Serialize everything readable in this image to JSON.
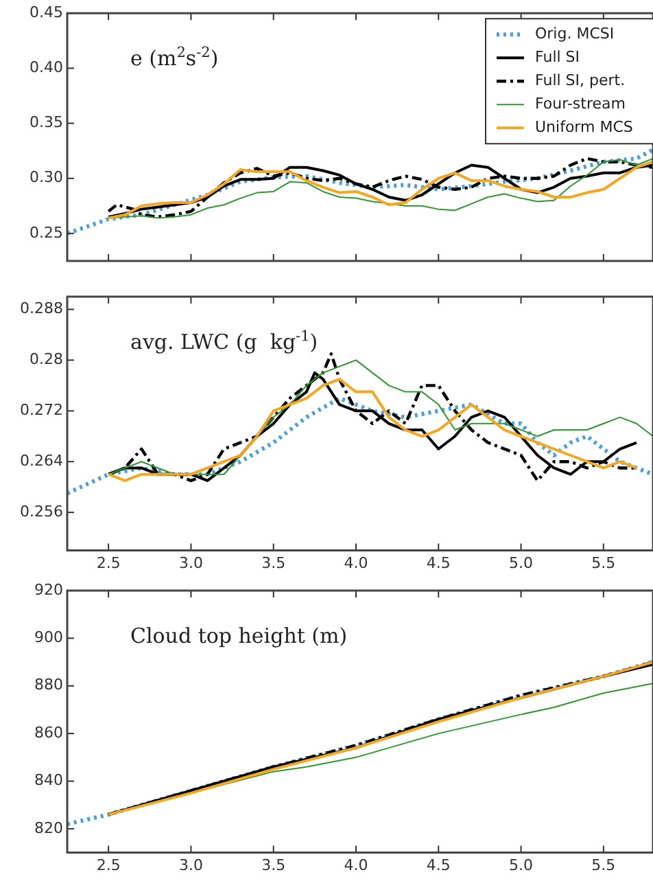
{
  "chart_data": [
    {
      "type": "line",
      "title": "e (m$^{2}$s$^{-2}$)",
      "xlim": [
        2.25,
        5.8
      ],
      "ylim": [
        0.225,
        0.45
      ],
      "xticks": [
        2.5,
        3,
        3.5,
        4,
        4.5,
        5,
        5.5
      ],
      "yticks": [
        {
          "value": 0.25,
          "label": "0.25"
        },
        {
          "value": 0.3,
          "label": "0.30"
        },
        {
          "value": 0.35,
          "label": "0.35"
        },
        {
          "value": 0.4,
          "label": "0.40"
        },
        {
          "value": 0.45,
          "label": "0.45"
        }
      ],
      "tick_labels": "y",
      "grid": false,
      "legend": "top right",
      "marker": "none",
      "series": [
        {
          "name": "Orig. MCSI",
          "color": "#4a9fe0",
          "line_style": "dotted",
          "x": [
            2.25,
            2.5,
            2.7,
            2.9,
            3.1,
            3.3,
            3.5,
            3.7,
            3.9,
            4.1,
            4.3,
            4.5,
            4.7,
            4.9,
            5.1,
            5.3,
            5.5,
            5.7,
            5.8
          ],
          "values": [
            0.25,
            0.263,
            0.267,
            0.276,
            0.285,
            0.297,
            0.301,
            0.302,
            0.296,
            0.292,
            0.294,
            0.29,
            0.293,
            0.297,
            0.3,
            0.307,
            0.315,
            0.318,
            0.326
          ]
        },
        {
          "name": "Full SI",
          "color": "#000000",
          "line_style": "solid",
          "x": [
            2.5,
            2.6,
            2.7,
            2.8,
            2.9,
            3.0,
            3.1,
            3.2,
            3.3,
            3.4,
            3.5,
            3.6,
            3.7,
            3.8,
            3.9,
            4.0,
            4.1,
            4.2,
            4.3,
            4.4,
            4.5,
            4.6,
            4.7,
            4.8,
            4.9,
            5.0,
            5.1,
            5.2,
            5.3,
            5.4,
            5.5,
            5.6,
            5.7,
            5.8
          ],
          "values": [
            0.265,
            0.268,
            0.272,
            0.274,
            0.276,
            0.278,
            0.283,
            0.293,
            0.299,
            0.299,
            0.3,
            0.31,
            0.31,
            0.307,
            0.303,
            0.295,
            0.29,
            0.283,
            0.28,
            0.285,
            0.295,
            0.305,
            0.312,
            0.31,
            0.3,
            0.29,
            0.287,
            0.292,
            0.3,
            0.302,
            0.305,
            0.305,
            0.31,
            0.312
          ]
        },
        {
          "name": "Full SI, pert.",
          "color": "#000000",
          "line_style": "dashed",
          "x": [
            2.5,
            2.55,
            2.65,
            2.7,
            2.8,
            2.9,
            3.0,
            3.1,
            3.2,
            3.3,
            3.4,
            3.5,
            3.6,
            3.7,
            3.8,
            3.9,
            4.0,
            4.1,
            4.2,
            4.3,
            4.4,
            4.5,
            4.6,
            4.7,
            4.8,
            4.9,
            5.0,
            5.1,
            5.2,
            5.3,
            5.4,
            5.5,
            5.6,
            5.7,
            5.8
          ],
          "values": [
            0.27,
            0.276,
            0.272,
            0.267,
            0.265,
            0.267,
            0.27,
            0.283,
            0.296,
            0.305,
            0.309,
            0.302,
            0.305,
            0.3,
            0.298,
            0.3,
            0.295,
            0.292,
            0.298,
            0.302,
            0.299,
            0.292,
            0.29,
            0.292,
            0.3,
            0.302,
            0.3,
            0.3,
            0.302,
            0.312,
            0.318,
            0.315,
            0.315,
            0.312,
            0.31
          ]
        },
        {
          "name": "Four-stream",
          "color": "#2e9a2e",
          "line_style": "solid",
          "x": [
            2.5,
            2.6,
            2.7,
            2.8,
            2.9,
            3.0,
            3.1,
            3.2,
            3.3,
            3.4,
            3.5,
            3.6,
            3.7,
            3.8,
            3.9,
            4.0,
            4.1,
            4.2,
            4.3,
            4.4,
            4.5,
            4.6,
            4.7,
            4.8,
            4.9,
            5.0,
            5.1,
            5.2,
            5.3,
            5.4,
            5.5,
            5.6,
            5.7,
            5.8
          ],
          "values": [
            0.264,
            0.265,
            0.266,
            0.264,
            0.265,
            0.267,
            0.273,
            0.276,
            0.282,
            0.287,
            0.288,
            0.297,
            0.296,
            0.288,
            0.283,
            0.282,
            0.279,
            0.277,
            0.275,
            0.275,
            0.272,
            0.271,
            0.277,
            0.283,
            0.286,
            0.282,
            0.279,
            0.28,
            0.293,
            0.303,
            0.315,
            0.317,
            0.312,
            0.318
          ]
        },
        {
          "name": "Uniform MCS",
          "color": "#f5a623",
          "line_style": "solid",
          "x": [
            2.5,
            2.6,
            2.7,
            2.8,
            2.9,
            3.0,
            3.1,
            3.2,
            3.3,
            3.4,
            3.5,
            3.6,
            3.7,
            3.8,
            3.9,
            4.0,
            4.1,
            4.2,
            4.3,
            4.4,
            4.5,
            4.6,
            4.7,
            4.8,
            4.9,
            5.0,
            5.1,
            5.2,
            5.3,
            5.4,
            5.5,
            5.6,
            5.7,
            5.8
          ],
          "values": [
            0.264,
            0.267,
            0.275,
            0.277,
            0.278,
            0.278,
            0.285,
            0.295,
            0.308,
            0.306,
            0.306,
            0.306,
            0.298,
            0.292,
            0.287,
            0.288,
            0.283,
            0.276,
            0.278,
            0.29,
            0.3,
            0.305,
            0.298,
            0.298,
            0.293,
            0.29,
            0.288,
            0.283,
            0.283,
            0.287,
            0.29,
            0.3,
            0.31,
            0.315
          ]
        }
      ]
    },
    {
      "type": "line",
      "title": "avg. LWC (g  kg$^{-1}$)",
      "xlim": [
        2.25,
        5.8
      ],
      "ylim": [
        0.25,
        0.29
      ],
      "xticks": [
        {
          "value": 2.5,
          "label": "2.5"
        },
        {
          "value": 3,
          "label": "3.0"
        },
        {
          "value": 3.5,
          "label": "3.5"
        },
        {
          "value": 4,
          "label": "4.0"
        },
        {
          "value": 4.5,
          "label": "4.5"
        },
        {
          "value": 5,
          "label": "5.0"
        },
        {
          "value": 5.5,
          "label": "5.5"
        }
      ],
      "yticks": [
        0.256,
        0.264,
        0.272,
        0.28,
        0.288
      ],
      "grid": false,
      "marker": "none",
      "series": [
        {
          "color": "#4a9fe0",
          "line_style": "dotted",
          "x": [
            2.25,
            2.5,
            2.7,
            2.9,
            3.1,
            3.3,
            3.5,
            3.7,
            3.9,
            4.1,
            4.3,
            4.5,
            4.7,
            4.9,
            5.0,
            5.1,
            5.2,
            5.3,
            5.4,
            5.5,
            5.6,
            5.7,
            5.8
          ],
          "values": [
            0.259,
            0.262,
            0.263,
            0.262,
            0.262,
            0.264,
            0.267,
            0.271,
            0.274,
            0.272,
            0.271,
            0.272,
            0.273,
            0.27,
            0.27,
            0.267,
            0.265,
            0.267,
            0.268,
            0.266,
            0.264,
            0.263,
            0.262
          ]
        },
        {
          "color": "#000000",
          "line_style": "solid",
          "x": [
            2.5,
            2.6,
            2.7,
            2.8,
            2.9,
            3.0,
            3.1,
            3.2,
            3.3,
            3.4,
            3.5,
            3.6,
            3.7,
            3.75,
            3.8,
            3.9,
            4.0,
            4.1,
            4.2,
            4.3,
            4.4,
            4.5,
            4.6,
            4.7,
            4.8,
            4.9,
            5.0,
            5.1,
            5.2,
            5.3,
            5.4,
            5.5,
            5.6,
            5.7
          ],
          "values": [
            0.262,
            0.263,
            0.263,
            0.262,
            0.262,
            0.262,
            0.261,
            0.263,
            0.265,
            0.268,
            0.27,
            0.273,
            0.275,
            0.278,
            0.277,
            0.273,
            0.272,
            0.272,
            0.27,
            0.269,
            0.269,
            0.266,
            0.268,
            0.271,
            0.272,
            0.271,
            0.268,
            0.265,
            0.263,
            0.262,
            0.264,
            0.264,
            0.266,
            0.267
          ]
        },
        {
          "color": "#000000",
          "line_style": "dashed",
          "x": [
            2.5,
            2.6,
            2.7,
            2.8,
            2.9,
            3.0,
            3.1,
            3.2,
            3.3,
            3.4,
            3.5,
            3.6,
            3.7,
            3.8,
            3.85,
            3.9,
            4.0,
            4.1,
            4.2,
            4.3,
            4.4,
            4.5,
            4.6,
            4.7,
            4.8,
            4.9,
            5.0,
            5.1,
            5.2,
            5.3,
            5.4,
            5.5,
            5.6,
            5.7
          ],
          "values": [
            0.262,
            0.263,
            0.266,
            0.262,
            0.262,
            0.261,
            0.262,
            0.266,
            0.267,
            0.268,
            0.271,
            0.274,
            0.276,
            0.278,
            0.281,
            0.277,
            0.272,
            0.27,
            0.272,
            0.27,
            0.276,
            0.276,
            0.272,
            0.269,
            0.267,
            0.266,
            0.265,
            0.261,
            0.264,
            0.264,
            0.263,
            0.264,
            0.263,
            0.263
          ]
        },
        {
          "color": "#2e9a2e",
          "line_style": "solid",
          "x": [
            2.5,
            2.6,
            2.7,
            2.8,
            2.9,
            3.0,
            3.1,
            3.2,
            3.3,
            3.4,
            3.5,
            3.6,
            3.7,
            3.8,
            3.9,
            4.0,
            4.1,
            4.2,
            4.3,
            4.4,
            4.5,
            4.6,
            4.7,
            4.8,
            4.9,
            5.0,
            5.1,
            5.2,
            5.3,
            5.4,
            5.5,
            5.6,
            5.7,
            5.8
          ],
          "values": [
            0.262,
            0.263,
            0.264,
            0.263,
            0.262,
            0.262,
            0.262,
            0.262,
            0.265,
            0.268,
            0.271,
            0.273,
            0.276,
            0.278,
            0.279,
            0.28,
            0.278,
            0.276,
            0.275,
            0.275,
            0.273,
            0.269,
            0.27,
            0.27,
            0.27,
            0.269,
            0.268,
            0.269,
            0.269,
            0.269,
            0.27,
            0.271,
            0.27,
            0.268
          ]
        },
        {
          "color": "#f5a623",
          "line_style": "solid",
          "x": [
            2.5,
            2.6,
            2.7,
            2.8,
            2.9,
            3.0,
            3.1,
            3.2,
            3.3,
            3.4,
            3.5,
            3.6,
            3.7,
            3.8,
            3.9,
            4.0,
            4.1,
            4.2,
            4.3,
            4.4,
            4.5,
            4.6,
            4.7,
            4.8,
            4.9,
            5.0,
            5.1,
            5.2,
            5.3,
            5.4,
            5.5,
            5.6,
            5.7
          ],
          "values": [
            0.262,
            0.261,
            0.262,
            0.262,
            0.262,
            0.262,
            0.263,
            0.264,
            0.265,
            0.268,
            0.272,
            0.273,
            0.274,
            0.276,
            0.277,
            0.275,
            0.275,
            0.271,
            0.269,
            0.268,
            0.269,
            0.271,
            0.273,
            0.271,
            0.269,
            0.268,
            0.267,
            0.266,
            0.265,
            0.264,
            0.263,
            0.264,
            0.263
          ]
        }
      ]
    },
    {
      "type": "line",
      "title": "Cloud top height (m)",
      "xlim": [
        2.25,
        5.8
      ],
      "ylim": [
        810,
        920
      ],
      "xticks": [
        {
          "value": 2.5,
          "label": "2.5"
        },
        {
          "value": 3,
          "label": "3.0"
        },
        {
          "value": 3.5,
          "label": "3.5"
        },
        {
          "value": 4,
          "label": "4.0"
        },
        {
          "value": 4.5,
          "label": "4.5"
        },
        {
          "value": 5,
          "label": "5.0"
        },
        {
          "value": 5.5,
          "label": "5.5"
        }
      ],
      "yticks": [
        820,
        840,
        860,
        880,
        900,
        920
      ],
      "grid": false,
      "marker": "none",
      "series": [
        {
          "color": "#4a9fe0",
          "line_style": "dotted",
          "x": [
            2.25,
            2.5,
            3.0,
            3.5,
            4.0,
            4.5,
            5.0,
            5.5,
            5.8
          ],
          "values": [
            822,
            826,
            836,
            846,
            855,
            866,
            876,
            884,
            890
          ]
        },
        {
          "color": "#000000",
          "line_style": "solid",
          "x": [
            2.5,
            3.0,
            3.5,
            4.0,
            4.5,
            5.0,
            5.5,
            5.8
          ],
          "values": [
            826,
            836,
            846,
            854,
            866,
            875,
            884,
            889
          ]
        },
        {
          "color": "#000000",
          "line_style": "dashed",
          "x": [
            2.5,
            3.0,
            3.5,
            4.0,
            4.5,
            5.0,
            5.5,
            5.8
          ],
          "values": [
            826,
            836,
            846,
            855,
            866,
            876,
            884,
            890
          ]
        },
        {
          "color": "#2e9a2e",
          "line_style": "solid",
          "x": [
            2.5,
            3.0,
            3.5,
            3.7,
            4.0,
            4.5,
            5.0,
            5.2,
            5.5,
            5.8
          ],
          "values": [
            826,
            835,
            844,
            846,
            850,
            860,
            868,
            871,
            877,
            881
          ]
        },
        {
          "color": "#f5a623",
          "line_style": "solid",
          "x": [
            2.5,
            3.0,
            3.5,
            4.0,
            4.5,
            5.0,
            5.5,
            5.8
          ],
          "values": [
            826,
            835,
            845,
            854,
            865,
            875,
            884,
            890
          ]
        }
      ]
    }
  ]
}
